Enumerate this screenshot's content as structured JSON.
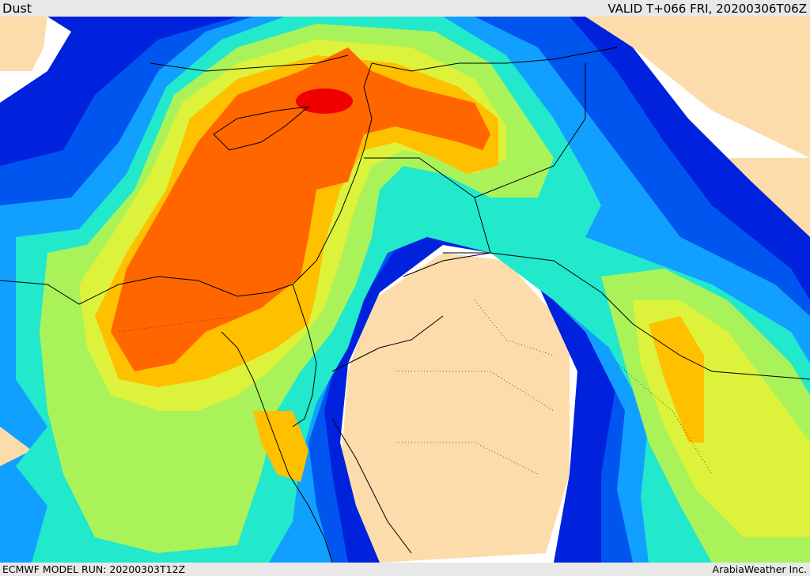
{
  "header": {
    "field_name": "Dust",
    "valid_time": "VALID T+066 FRI, 20200306T06Z"
  },
  "footer": {
    "model_run": "ECMWF MODEL RUN: 20200303T12Z",
    "producer": "ArabiaWeather Inc."
  },
  "palette": {
    "land": "#fcdcaa",
    "none": "#ffffff",
    "level1": "#0022dd",
    "level2": "#0055ee",
    "level3": "#11a0ff",
    "level4": "#22e8cc",
    "level5": "#aaf25a",
    "level6": "#ddf23a",
    "level7": "#ffc000",
    "level8": "#ff6600",
    "level9": "#ee0000"
  }
}
